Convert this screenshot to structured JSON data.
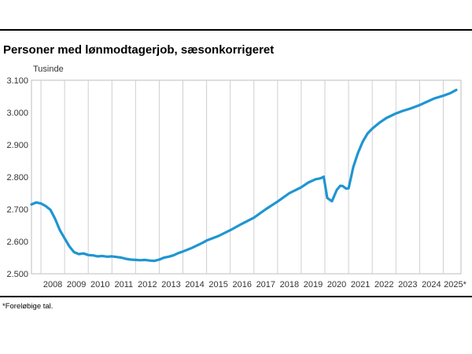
{
  "chart_data": {
    "type": "line",
    "title": "Personer med lønmodtagerjob, sæsonkorrigeret",
    "unit_label": "Tusinde",
    "xlabel": "",
    "ylabel": "Tusinde",
    "ylim": [
      2500,
      3100
    ],
    "y_ticks": [
      2500,
      2600,
      2700,
      2800,
      2900,
      3000,
      3100
    ],
    "y_tick_labels": [
      "2.500",
      "2.600",
      "2.700",
      "2.800",
      "2.900",
      "3.000",
      "3.100"
    ],
    "x_range": [
      2007.6,
      2025.75
    ],
    "x_tick_labels": [
      "2008",
      "2009",
      "2010",
      "2011",
      "2012",
      "2013",
      "2014",
      "2015",
      "2016",
      "2017",
      "2018",
      "2019",
      "2020",
      "2021",
      "2022",
      "2023",
      "2024",
      "2025*"
    ],
    "grid": "vertical",
    "line_color": "#1f95d2",
    "series": [
      {
        "x": [
          2007.6,
          2007.8,
          2008.0,
          2008.2,
          2008.4,
          2008.6,
          2008.8,
          2009.0,
          2009.2,
          2009.4,
          2009.6,
          2009.8,
          2010.0,
          2010.2,
          2010.4,
          2010.6,
          2010.8,
          2011.0,
          2011.2,
          2011.4,
          2011.6,
          2011.8,
          2012.0,
          2012.2,
          2012.4,
          2012.6,
          2012.8,
          2013.0,
          2013.2,
          2013.4,
          2013.6,
          2013.8,
          2014.0,
          2014.2,
          2014.4,
          2014.6,
          2014.8,
          2015.0,
          2015.5,
          2016.0,
          2016.5,
          2017.0,
          2017.5,
          2018.0,
          2018.5,
          2019.0,
          2019.3,
          2019.6,
          2019.75,
          2019.85,
          2019.95,
          2020.1,
          2020.3,
          2020.5,
          2020.65,
          2020.75,
          2020.9,
          2021.0,
          2021.2,
          2021.4,
          2021.6,
          2021.8,
          2022.0,
          2022.3,
          2022.6,
          2023.0,
          2023.3,
          2023.6,
          2024.0,
          2024.3,
          2024.6,
          2025.0,
          2025.3,
          2025.55
        ],
        "values": [
          2715,
          2721,
          2718,
          2710,
          2698,
          2670,
          2635,
          2610,
          2585,
          2567,
          2561,
          2563,
          2558,
          2557,
          2554,
          2555,
          2553,
          2554,
          2552,
          2550,
          2546,
          2544,
          2543,
          2542,
          2543,
          2541,
          2540,
          2544,
          2550,
          2553,
          2557,
          2564,
          2569,
          2575,
          2581,
          2588,
          2595,
          2603,
          2617,
          2635,
          2655,
          2674,
          2700,
          2724,
          2750,
          2768,
          2783,
          2793,
          2795,
          2797,
          2801,
          2735,
          2725,
          2760,
          2773,
          2772,
          2764,
          2765,
          2831,
          2875,
          2910,
          2935,
          2950,
          2968,
          2983,
          2997,
          3005,
          3012,
          3023,
          3033,
          3043,
          3052,
          3060,
          3070
        ]
      }
    ]
  },
  "footnote": "*Foreløbige tal."
}
